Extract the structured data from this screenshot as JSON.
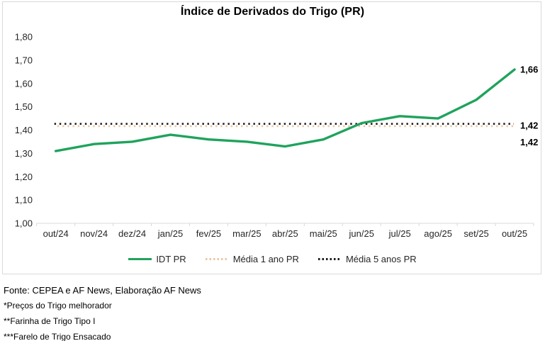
{
  "title": "Índice de Derivados do Trigo (PR)",
  "colors": {
    "idt_green": "#1FA35C",
    "avg1_tan": "#EAC7A3",
    "avg5_black": "#1A1A1A",
    "axis_line": "#D9D9D9",
    "tick_text": "#262626",
    "data_label_text": "#000000"
  },
  "chart_data": {
    "type": "line",
    "title": "Índice de Derivados do Trigo (PR)",
    "categories": [
      "out/24",
      "nov/24",
      "dez/24",
      "jan/25",
      "fev/25",
      "mar/25",
      "abr/25",
      "mai/25",
      "jun/25",
      "jul/25",
      "ago/25",
      "set/25",
      "out/25"
    ],
    "series": [
      {
        "name": "IDT PR",
        "style": "solid",
        "color": "#1FA35C",
        "values": [
          1.31,
          1.34,
          1.35,
          1.38,
          1.36,
          1.35,
          1.33,
          1.36,
          1.43,
          1.46,
          1.45,
          1.53,
          1.66
        ],
        "end_label": "1,66"
      },
      {
        "name": "Média 1 ano PR",
        "style": "dotted",
        "color": "#EAC7A3",
        "constant": 1.42,
        "end_label": "1,42"
      },
      {
        "name": "Média 5 anos PR",
        "style": "dotted",
        "color": "#1A1A1A",
        "constant": 1.42,
        "end_label": "1,42"
      }
    ],
    "ylim": [
      1.0,
      1.8
    ],
    "y_ticks": [
      {
        "v": 1.8,
        "label": "1,80"
      },
      {
        "v": 1.7,
        "label": "1,70"
      },
      {
        "v": 1.6,
        "label": "1,60"
      },
      {
        "v": 1.5,
        "label": "1,50"
      },
      {
        "v": 1.4,
        "label": "1,40"
      },
      {
        "v": 1.3,
        "label": "1,30"
      },
      {
        "v": 1.2,
        "label": "1,20"
      },
      {
        "v": 1.1,
        "label": "1,10"
      },
      {
        "v": 1.0,
        "label": "1,00"
      }
    ],
    "grid": false,
    "legend_position": "bottom"
  },
  "legend": [
    {
      "label": "IDT PR"
    },
    {
      "label": "Média 1 ano PR"
    },
    {
      "label": "Média 5 anos PR"
    }
  ],
  "footer": {
    "source": "Fonte: CEPEA e AF News, Elaboração AF News",
    "note1": "*Preços do Trigo melhorador",
    "note2": "**Farinha de Trigo Tipo I",
    "note3": "***Farelo de Trigo Ensacado"
  }
}
